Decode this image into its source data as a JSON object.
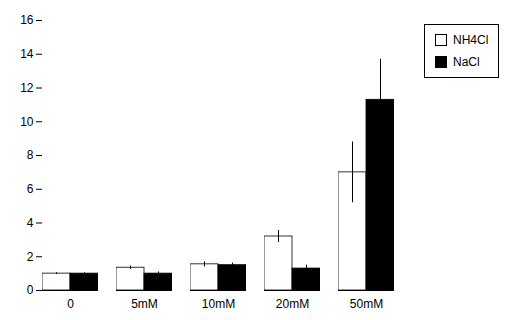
{
  "chart_data": {
    "type": "bar",
    "categories": [
      "0",
      "5mM",
      "10mM",
      "20mM",
      "50mM"
    ],
    "series": [
      {
        "name": "NH4Cl",
        "color": "#ffffff",
        "values": [
          1.0,
          1.35,
          1.55,
          3.2,
          7.0
        ],
        "errors": [
          0.05,
          0.1,
          0.15,
          0.35,
          1.8
        ]
      },
      {
        "name": "NaCl",
        "color": "#000000",
        "values": [
          1.0,
          1.0,
          1.5,
          1.3,
          11.3
        ],
        "errors": [
          0.05,
          0.1,
          0.12,
          0.2,
          2.4
        ]
      }
    ],
    "ylim": [
      0,
      16
    ],
    "yticks": [
      0,
      2,
      4,
      6,
      8,
      10,
      12,
      14,
      16
    ],
    "legend": "right",
    "grid": false
  }
}
